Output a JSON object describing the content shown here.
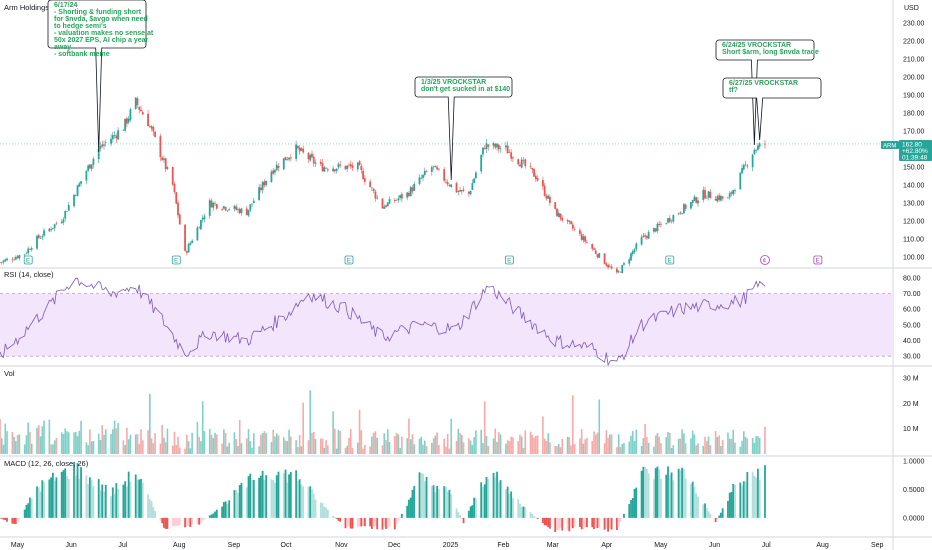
{
  "header": {
    "symbol_title": "Arm Holdings plc - 1D - NASDAQ",
    "currency": "USD"
  },
  "last_price": {
    "ticker": "ARM",
    "value": "162.80",
    "change": "+62.80%",
    "countdown": "01:39:48"
  },
  "price_axis": {
    "ticks": [
      "230.00",
      "220.00",
      "210.00",
      "200.00",
      "190.00",
      "180.00",
      "170.00",
      "160.00",
      "150.00",
      "140.00",
      "130.00",
      "120.00",
      "110.00",
      "100.00"
    ]
  },
  "rsi_pane": {
    "title": "RSI (14, close)",
    "ticks": [
      "80.00",
      "70.00",
      "60.00",
      "50.00",
      "40.00",
      "30.00"
    ]
  },
  "vol_pane": {
    "title": "Vol",
    "ticks": [
      "30 M",
      "20 M",
      "10 M"
    ]
  },
  "macd_pane": {
    "title": "MACD (12, 26, close, 26)",
    "ticks": [
      "1.0000",
      "0.5000",
      "0.0000"
    ]
  },
  "time_axis": {
    "labels": [
      "May",
      "Jun",
      "Jul",
      "Aug",
      "Sep",
      "Oct",
      "Nov",
      "Dec",
      "2025",
      "Feb",
      "Mar",
      "Apr",
      "May",
      "Jun",
      "Jul",
      "Aug",
      "Sep"
    ]
  },
  "earnings_markers": [
    "E",
    "E",
    "E",
    "E",
    "E",
    "E",
    "E"
  ],
  "annotations": [
    {
      "lines": [
        "6/17/24",
        "- Shorting & funding short",
        "for $nvda, $avgo when need",
        "to hedge semi's",
        "- valuation makes no sense at",
        "50x 2027 EPS, AI chip a year",
        "away",
        "- softbank meme"
      ]
    },
    {
      "lines": [
        "1/3/25 VROCKSTAR",
        "don't get sucked in  at $140"
      ]
    },
    {
      "lines": [
        "6/24/25 VROCKSTAR",
        "Short $arm, long $nvda trade"
      ]
    },
    {
      "lines": [
        "6/27/25 VROCKSTAR",
        "tf?"
      ]
    }
  ],
  "colors": {
    "up": "#26a69a",
    "down": "#ef5350",
    "rsi_line": "#7e57c2",
    "rsi_band": "#f3e5fb",
    "vol_up": "#7fd0c8",
    "vol_down": "#f7a9a7",
    "macd_up_strong": "#26a69a",
    "macd_up_weak": "#b2dfdb",
    "macd_down_strong": "#ef5350",
    "macd_down_weak": "#ffcdd2",
    "note_text": "#26a65b"
  },
  "chart_data": [
    {
      "type": "candlestick",
      "title": "Arm Holdings plc - 1D - NASDAQ",
      "ylim": [
        95,
        235
      ],
      "x_range": [
        "2024-04-22",
        "2025-09-05"
      ],
      "anchors_close": [
        [
          "2024-04-22",
          97
        ],
        [
          "2024-05-06",
          102
        ],
        [
          "2024-05-13",
          110
        ],
        [
          "2024-05-27",
          121
        ],
        [
          "2024-06-10",
          148
        ],
        [
          "2024-06-17",
          160
        ],
        [
          "2024-07-01",
          172
        ],
        [
          "2024-07-08",
          186
        ],
        [
          "2024-07-15",
          175
        ],
        [
          "2024-07-29",
          140
        ],
        [
          "2024-08-05",
          102
        ],
        [
          "2024-08-19",
          130
        ],
        [
          "2024-09-09",
          125
        ],
        [
          "2024-09-23",
          148
        ],
        [
          "2024-10-07",
          160
        ],
        [
          "2024-10-21",
          150
        ],
        [
          "2024-11-11",
          150
        ],
        [
          "2024-11-25",
          128
        ],
        [
          "2024-12-09",
          135
        ],
        [
          "2024-12-23",
          150
        ],
        [
          "2025-01-06",
          137
        ],
        [
          "2025-01-13",
          135
        ],
        [
          "2025-01-22",
          162
        ],
        [
          "2025-02-03",
          160
        ],
        [
          "2025-02-20",
          145
        ],
        [
          "2025-03-03",
          125
        ],
        [
          "2025-03-17",
          112
        ],
        [
          "2025-04-07",
          90
        ],
        [
          "2025-04-21",
          110
        ],
        [
          "2025-05-12",
          125
        ],
        [
          "2025-05-26",
          135
        ],
        [
          "2025-06-09",
          132
        ],
        [
          "2025-06-24",
          160
        ],
        [
          "2025-06-30",
          162.8
        ]
      ]
    },
    {
      "type": "line",
      "title": "RSI (14, close)",
      "ylim": [
        25,
        85
      ],
      "band": [
        30,
        70
      ],
      "anchors": [
        [
          "2024-04-22",
          30
        ],
        [
          "2024-05-20",
          62
        ],
        [
          "2024-06-03",
          80
        ],
        [
          "2024-06-24",
          70
        ],
        [
          "2024-07-08",
          75
        ],
        [
          "2024-07-22",
          55
        ],
        [
          "2024-08-05",
          32
        ],
        [
          "2024-08-19",
          45
        ],
        [
          "2024-09-09",
          40
        ],
        [
          "2024-09-30",
          55
        ],
        [
          "2024-10-14",
          70
        ],
        [
          "2024-11-04",
          60
        ],
        [
          "2024-11-25",
          42
        ],
        [
          "2024-12-16",
          50
        ],
        [
          "2025-01-06",
          47
        ],
        [
          "2025-01-24",
          75
        ],
        [
          "2025-02-10",
          58
        ],
        [
          "2025-03-03",
          40
        ],
        [
          "2025-03-24",
          35
        ],
        [
          "2025-04-07",
          25
        ],
        [
          "2025-04-21",
          50
        ],
        [
          "2025-05-12",
          60
        ],
        [
          "2025-06-02",
          63
        ],
        [
          "2025-06-16",
          65
        ],
        [
          "2025-06-30",
          78
        ]
      ]
    },
    {
      "type": "bar",
      "title": "Vol",
      "ylim": [
        0,
        34
      ],
      "unit": "M"
    },
    {
      "type": "bar",
      "title": "MACD (12, 26, close, 26)",
      "ylim": [
        -0.3,
        1.05
      ]
    }
  ]
}
